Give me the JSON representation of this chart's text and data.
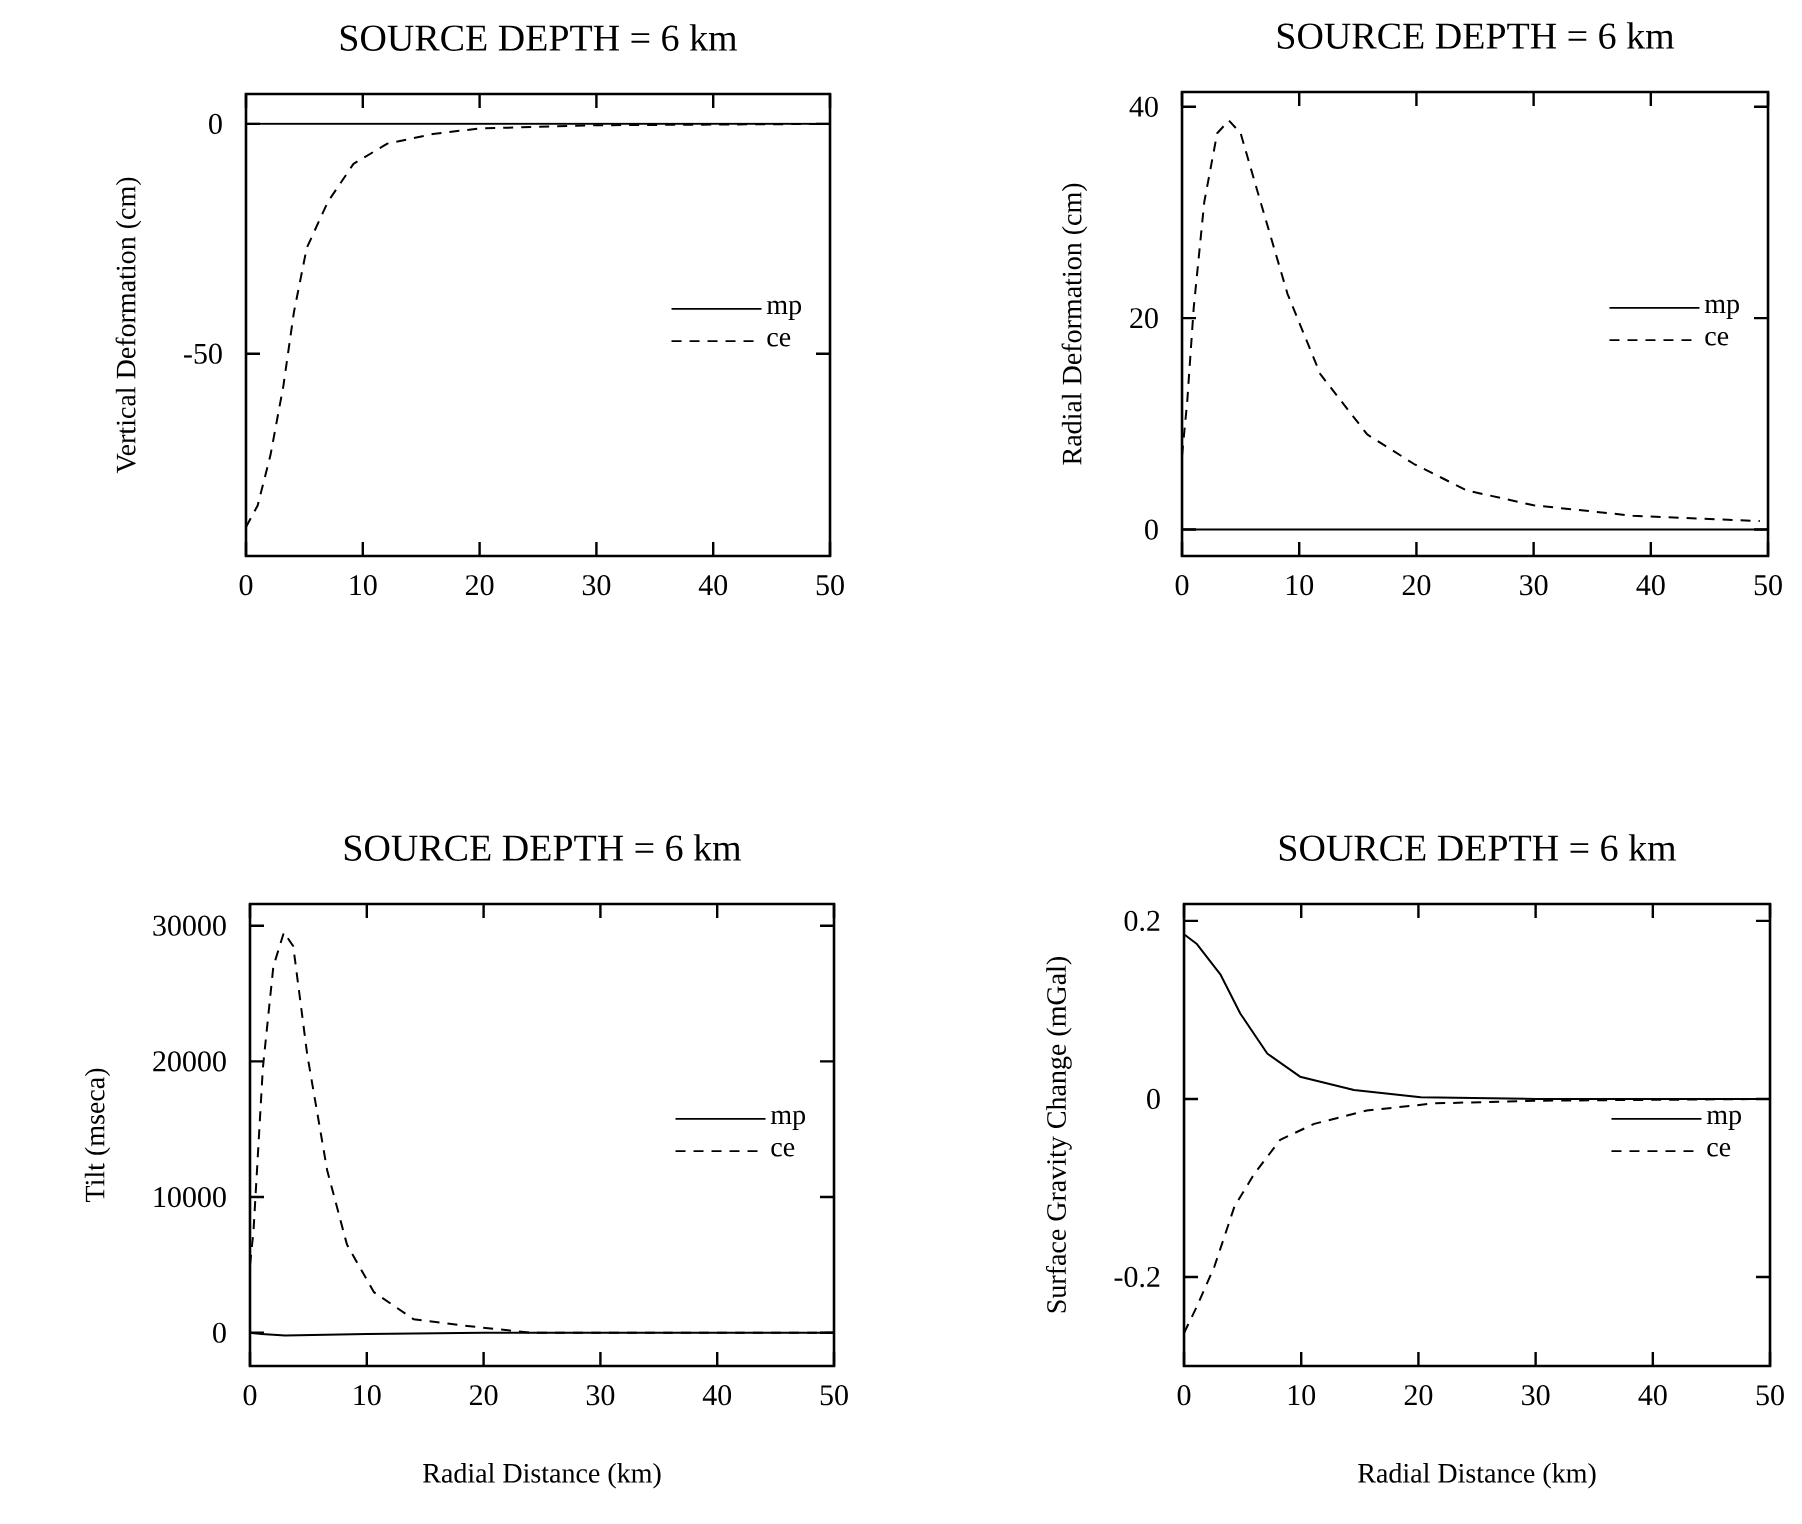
{
  "chart_data": [
    {
      "type": "line",
      "title": "SOURCE DEPTH = 6 km",
      "ylabel": "Vertical Deformation (cm)",
      "xlim": [
        0,
        50
      ],
      "ylim": [
        -94,
        6.5
      ],
      "xticks": [
        0,
        10,
        20,
        30,
        40,
        50
      ],
      "yticks": [
        0,
        -50
      ],
      "legend": "right",
      "series": [
        {
          "name": "mp",
          "color": "#000000",
          "line_style": "solid",
          "x": [
            0,
            10,
            20,
            30,
            40,
            50
          ],
          "values": [
            0,
            0,
            0,
            0,
            0,
            0
          ]
        },
        {
          "name": "ce",
          "color": "#000000",
          "line_style": "dashed",
          "x": [
            0,
            1,
            2.1,
            3.2,
            4.1,
            5.2,
            7,
            9.2,
            12.1,
            16,
            20,
            30,
            50
          ],
          "values": [
            -87.7,
            -83,
            -72,
            -57,
            -41,
            -27,
            -17,
            -8.7,
            -4.3,
            -2.2,
            -1,
            -0.3,
            0
          ]
        }
      ]
    },
    {
      "type": "line",
      "title": "SOURCE DEPTH = 6 km",
      "ylabel": "Radial Deformation (cm)",
      "xlim": [
        0,
        50
      ],
      "ylim": [
        -2.5,
        41.4
      ],
      "xticks": [
        0,
        10,
        20,
        30,
        40,
        50
      ],
      "yticks": [
        0,
        20,
        40
      ],
      "legend": "right",
      "series": [
        {
          "name": "mp",
          "color": "#000000",
          "line_style": "solid",
          "x": [
            0,
            10,
            20,
            30,
            40,
            50
          ],
          "values": [
            0,
            0,
            0,
            0,
            0,
            0
          ]
        },
        {
          "name": "ce",
          "color": "#000000",
          "line_style": "dashed",
          "x": [
            0,
            0.45,
            1,
            1.9,
            3,
            4,
            5,
            6.7,
            9,
            11.8,
            15.8,
            19.8,
            24.3,
            30,
            38.5,
            49.3
          ],
          "values": [
            7,
            12.2,
            21,
            31,
            37.5,
            38.7,
            37.5,
            31,
            22.3,
            14.7,
            9,
            6.2,
            3.7,
            2.3,
            1.3,
            0.8
          ]
        }
      ]
    },
    {
      "type": "line",
      "title": "SOURCE DEPTH = 6 km",
      "xlabel": "Radial Distance (km)",
      "ylabel": "Tilt (mseca)",
      "xlim": [
        0,
        50
      ],
      "ylim": [
        -2450,
        31600
      ],
      "xticks": [
        0,
        10,
        20,
        30,
        40,
        50
      ],
      "yticks": [
        0,
        10000,
        20000,
        30000
      ],
      "legend": "right",
      "series": [
        {
          "name": "mp",
          "color": "#000000",
          "line_style": "solid",
          "x": [
            0,
            1,
            3,
            10,
            20,
            50
          ],
          "values": [
            0,
            -100,
            -200,
            -100,
            0,
            0
          ]
        },
        {
          "name": "ce",
          "color": "#000000",
          "line_style": "dashed",
          "x": [
            0,
            0.3,
            1.1,
            2,
            2.9,
            3.7,
            4.9,
            6.6,
            8.3,
            10.6,
            14,
            18.6,
            24,
            50
          ],
          "values": [
            5000,
            7500,
            19500,
            27000,
            29500,
            28500,
            20500,
            12000,
            6500,
            3000,
            1000,
            500,
            0,
            0
          ]
        }
      ]
    },
    {
      "type": "line",
      "title": "SOURCE DEPTH = 6 km",
      "xlabel": "Radial Distance (km)",
      "ylabel": "Surface Gravity Change (mGal)",
      "xlim": [
        0,
        50
      ],
      "ylim": [
        -0.3,
        0.219
      ],
      "xticks": [
        0,
        10,
        20,
        30,
        40,
        50
      ],
      "yticks": [
        -0.2,
        0,
        0.2
      ],
      "legend": "right",
      "series": [
        {
          "name": "mp",
          "color": "#000000",
          "line_style": "solid",
          "x": [
            0,
            1.1,
            3.1,
            4.8,
            7.1,
            9.9,
            14.5,
            20.2,
            30,
            50
          ],
          "values": [
            0.185,
            0.174,
            0.14,
            0.096,
            0.051,
            0.025,
            0.01,
            0.002,
            0,
            0
          ]
        },
        {
          "name": "ce",
          "color": "#000000",
          "line_style": "dashed",
          "x": [
            0,
            1.1,
            2.6,
            4.3,
            6,
            8.2,
            11.1,
            15.6,
            21.3,
            30,
            50
          ],
          "values": [
            -0.263,
            -0.233,
            -0.188,
            -0.121,
            -0.084,
            -0.046,
            -0.028,
            -0.013,
            -0.005,
            -0.002,
            0
          ]
        }
      ]
    }
  ]
}
